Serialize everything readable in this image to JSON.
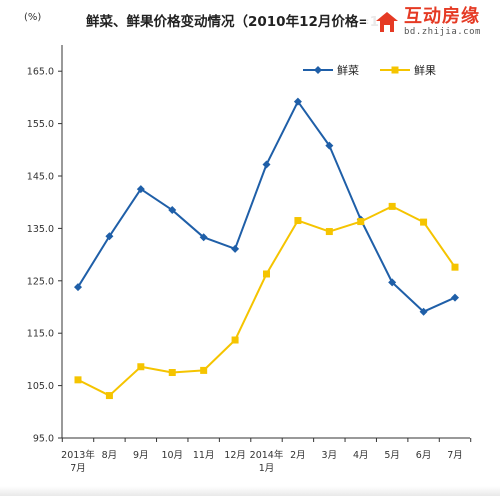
{
  "header": {
    "unit": "(%)",
    "title": "鲜菜、鲜果价格变动情况（2010年12月价格=1",
    "logo_cn": "互动房缘",
    "logo_url": "bd.zhijia.com"
  },
  "colors": {
    "vegetables": "#1f5fa8",
    "fruits": "#f5c400",
    "axis": "#333333"
  },
  "chart_data": {
    "type": "line",
    "title": "鲜菜、鲜果价格变动情况（2010年12月价格=1",
    "xlabel": "",
    "ylabel": "(%)",
    "ylim": [
      95.0,
      170.0
    ],
    "yticks": [
      "95.0",
      "105.0",
      "115.0",
      "125.0",
      "135.0",
      "145.0",
      "155.0",
      "165.0"
    ],
    "categories": [
      [
        "2013年",
        "7月"
      ],
      [
        "8月"
      ],
      [
        "9月"
      ],
      [
        "10月"
      ],
      [
        "11月"
      ],
      [
        "12月"
      ],
      [
        "2014年",
        "1月"
      ],
      [
        "2月"
      ],
      [
        "3月"
      ],
      [
        "4月"
      ],
      [
        "5月"
      ],
      [
        "6月"
      ],
      [
        "7月"
      ]
    ],
    "series": [
      {
        "name": "鲜菜",
        "marker": "diamond",
        "color": "#1f5fa8",
        "values": [
          123.8,
          133.5,
          142.5,
          138.5,
          133.3,
          131.1,
          147.2,
          159.2,
          150.8,
          136.7,
          124.7,
          119.1,
          121.8
        ]
      },
      {
        "name": "鲜果",
        "marker": "square",
        "color": "#f5c400",
        "values": [
          106.1,
          103.1,
          108.6,
          107.5,
          107.9,
          113.7,
          126.3,
          136.5,
          134.4,
          136.3,
          139.2,
          136.2,
          127.6
        ]
      }
    ],
    "legend": "top-right",
    "grid": false
  }
}
